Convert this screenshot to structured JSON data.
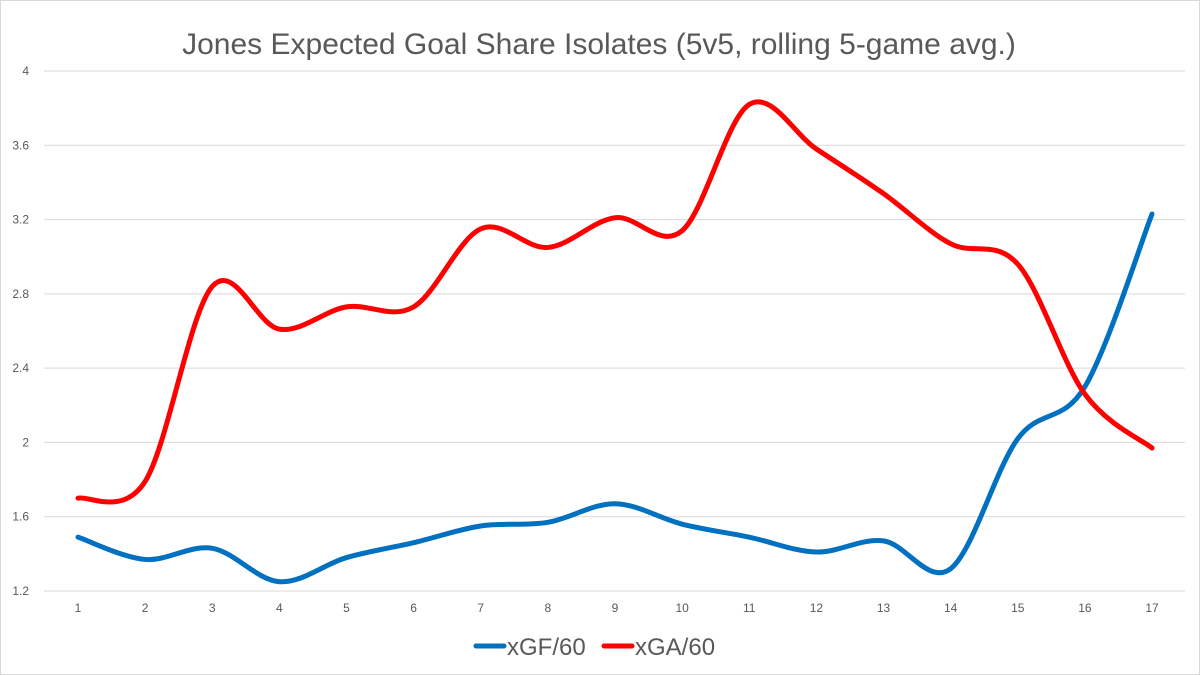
{
  "chart_data": {
    "type": "line",
    "title": "Jones Expected Goal Share Isolates (5v5, rolling 5-game avg.)",
    "xlabel": "",
    "ylabel": "",
    "categories": [
      "1",
      "2",
      "3",
      "4",
      "5",
      "6",
      "7",
      "8",
      "9",
      "10",
      "11",
      "12",
      "13",
      "14",
      "15",
      "16",
      "17"
    ],
    "ylim": [
      1.2,
      4
    ],
    "yticks": [
      "1.2",
      "1.6",
      "2",
      "2.4",
      "2.8",
      "3.2",
      "3.6",
      "4"
    ],
    "grid": true,
    "legend_position": "bottom",
    "smooth": true,
    "series": [
      {
        "name": "xGF/60",
        "color": "#0070C0",
        "values": [
          1.49,
          1.37,
          1.43,
          1.25,
          1.38,
          1.46,
          1.55,
          1.57,
          1.67,
          1.56,
          1.49,
          1.41,
          1.47,
          1.32,
          2.02,
          2.3,
          3.23
        ]
      },
      {
        "name": "xGA/60",
        "color": "#FF0000",
        "values": [
          1.7,
          1.79,
          2.84,
          2.61,
          2.73,
          2.73,
          3.15,
          3.05,
          3.21,
          3.14,
          3.82,
          3.58,
          3.34,
          3.07,
          2.96,
          2.26,
          1.97
        ]
      }
    ]
  }
}
